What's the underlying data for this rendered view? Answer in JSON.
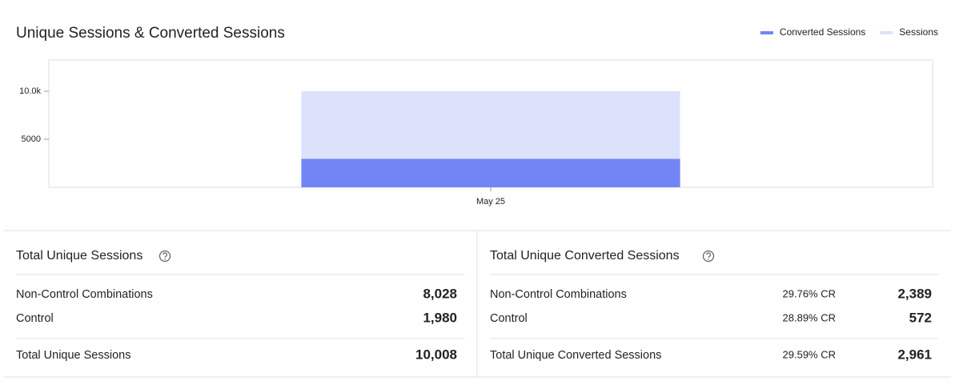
{
  "chart_data": {
    "type": "bar",
    "title": "Unique Sessions & Converted Sessions",
    "categories": [
      "May 25"
    ],
    "series": [
      {
        "name": "Converted Sessions",
        "color": "#7385f5",
        "values": [
          2961
        ]
      },
      {
        "name": "Sessions",
        "color": "#dde2fc",
        "values": [
          10008
        ]
      }
    ],
    "ylim": [
      0,
      13250
    ],
    "yticks": [
      5000,
      {
        "value": 10000,
        "label": "10.0k"
      }
    ]
  },
  "panels": [
    {
      "title": "Total Unique Sessions",
      "rows": [
        [
          "Non-Control Combinations",
          "8,028"
        ],
        [
          "Control",
          "1,980"
        ]
      ],
      "total": [
        "Total Unique Sessions",
        "10,008"
      ]
    },
    {
      "title": "Total Unique Converted Sessions",
      "rows": [
        [
          "Non-Control Combinations",
          "29.76% CR",
          "2,389"
        ],
        [
          "Control",
          "28.89% CR",
          "572"
        ]
      ],
      "total": [
        "Total Unique Converted Sessions",
        "29.59% CR",
        "2,961"
      ]
    }
  ]
}
